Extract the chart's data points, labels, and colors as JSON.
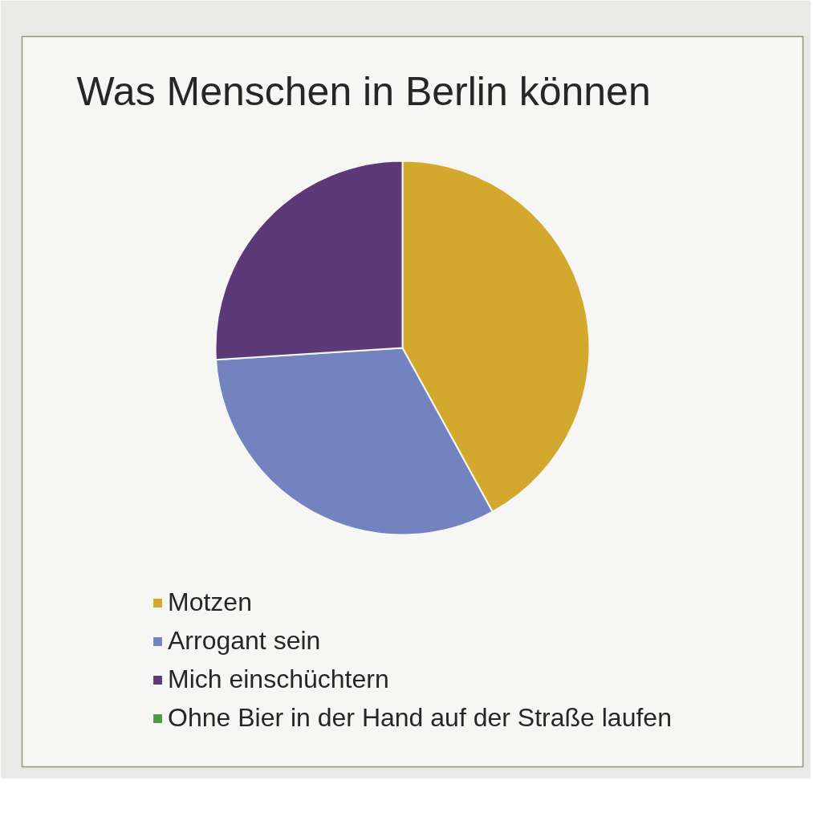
{
  "chart_data": {
    "type": "pie",
    "title": "Was Menschen in Berlin können",
    "categories": [
      "Motzen",
      "Arrogant sein",
      "Mich einschüchtern",
      "Ohne Bier in der Hand auf der Straße laufen"
    ],
    "values": [
      42,
      32,
      26,
      0
    ],
    "colors": [
      "#d2a92c",
      "#7283bf",
      "#5c3a78",
      "#4c9a46"
    ],
    "legend": "bottom left"
  }
}
